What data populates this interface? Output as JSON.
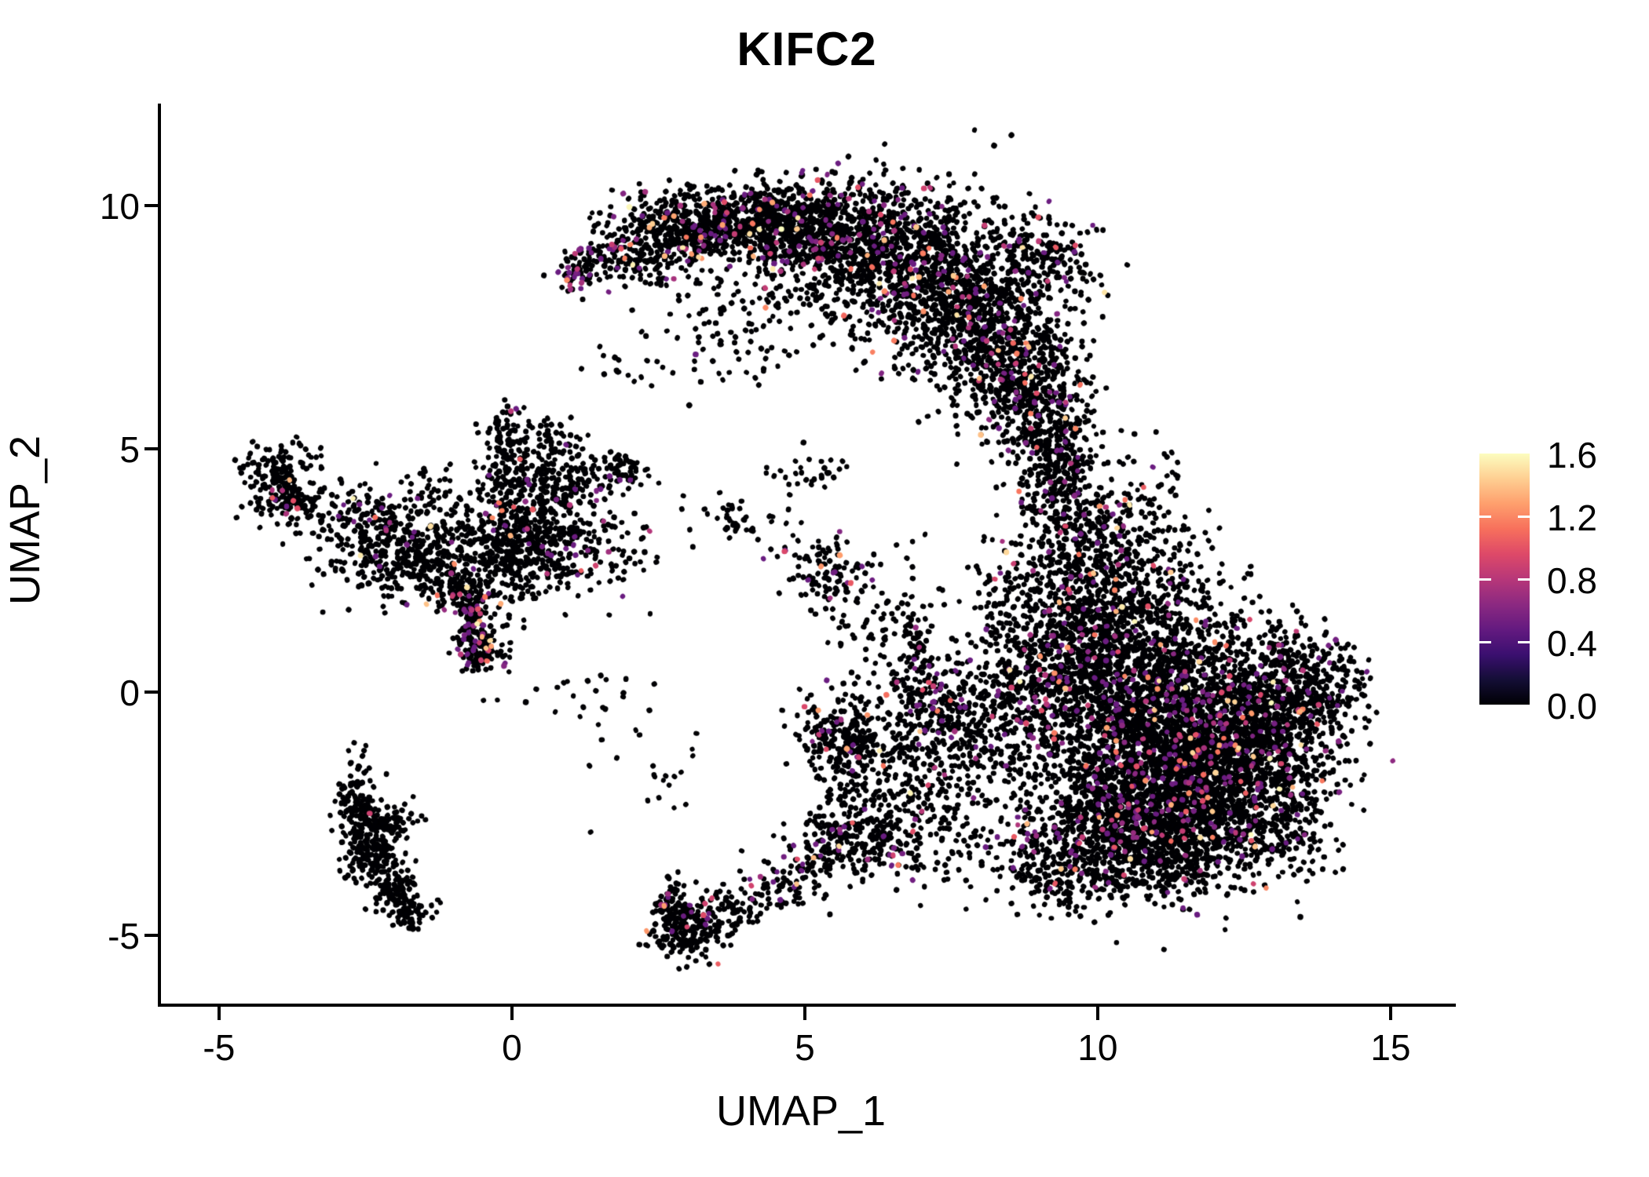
{
  "chart": {
    "title": "KIFC2",
    "xlabel": "UMAP_1",
    "ylabel": "UMAP_2"
  },
  "chart_data": {
    "type": "scatter",
    "title": "KIFC2",
    "xlabel": "UMAP_1",
    "ylabel": "UMAP_2",
    "x_ticks": [
      "-5",
      "0",
      "5",
      "10",
      "15"
    ],
    "x_tick_values": [
      -5,
      0,
      5,
      10,
      15
    ],
    "y_ticks": [
      "10",
      "5",
      "0",
      "-5"
    ],
    "y_tick_values": [
      10,
      5,
      0,
      -5
    ],
    "xlim": [
      -5.99,
      16.06
    ],
    "ylim": [
      -6.4,
      12.1
    ],
    "grid": false,
    "legend_position": "right",
    "colorbar": {
      "ticks": [
        "1.6",
        "1.2",
        "0.8",
        "0.4",
        "0.0"
      ],
      "tick_values": [
        1.6,
        1.2,
        0.8,
        0.4,
        0.0
      ],
      "interior_tick_values": [
        1.2,
        0.8,
        0.4
      ],
      "vmin": 0.0,
      "vmax": 1.6,
      "colormap": "magma"
    },
    "magma_anchors": [
      [
        0.0,
        "#000004"
      ],
      [
        0.1,
        "#140e36"
      ],
      [
        0.2,
        "#3b0f70"
      ],
      [
        0.3,
        "#641a80"
      ],
      [
        0.4,
        "#8c2981"
      ],
      [
        0.5,
        "#b73779"
      ],
      [
        0.6,
        "#de4968"
      ],
      [
        0.7,
        "#f7705c"
      ],
      [
        0.8,
        "#fe9f6d"
      ],
      [
        0.9,
        "#fecf92"
      ],
      [
        1.0,
        "#fcfdbf"
      ]
    ],
    "point_style": {
      "radius": 3.3,
      "seed": 42,
      "zero_fraction_default": 0.93
    },
    "clusters": [
      {
        "name": "top-arc",
        "blobs": [
          [
            10,
            1.02,
            8.55,
            0.07,
            0.15,
            0,
            0.8
          ],
          [
            70,
            1.25,
            8.72,
            0.22,
            0.3,
            -35,
            0.15
          ],
          [
            260,
            2.2,
            9.15,
            0.5,
            0.42,
            0,
            0.1
          ],
          [
            360,
            3.2,
            9.6,
            0.55,
            0.38,
            0,
            0.08
          ],
          [
            420,
            4.3,
            9.65,
            0.6,
            0.45,
            0,
            0.09
          ],
          [
            520,
            5.4,
            9.45,
            0.65,
            0.55,
            0,
            0.09
          ],
          [
            560,
            6.4,
            9.0,
            0.7,
            0.72,
            0,
            0.08
          ],
          [
            560,
            7.3,
            8.4,
            0.65,
            0.85,
            0,
            0.08
          ],
          [
            500,
            8.1,
            7.55,
            0.58,
            0.92,
            0,
            0.07
          ],
          [
            400,
            8.7,
            6.6,
            0.5,
            0.85,
            0,
            0.07
          ],
          [
            240,
            9.1,
            5.8,
            0.42,
            0.7,
            0,
            0.07
          ],
          [
            200,
            9.05,
            8.85,
            0.45,
            0.5,
            0,
            0.07
          ],
          [
            90,
            4.3,
            8.35,
            0.9,
            0.5,
            0,
            0.05
          ],
          [
            60,
            3.6,
            7.1,
            0.75,
            0.5,
            0,
            0.05
          ],
          [
            70,
            9.4,
            4.9,
            0.3,
            0.55,
            0,
            0.07
          ],
          [
            15,
            1.8,
            6.6,
            0.5,
            0.3,
            0,
            0
          ]
        ]
      },
      {
        "name": "right-connector-band",
        "blobs": [
          [
            150,
            9.3,
            4.35,
            0.35,
            0.55,
            0,
            0.07
          ],
          [
            200,
            9.7,
            3.4,
            0.45,
            0.6,
            0,
            0.07
          ],
          [
            260,
            10.0,
            2.45,
            0.55,
            0.6,
            0,
            0.07
          ],
          [
            120,
            10.9,
            3.4,
            0.5,
            0.8,
            0,
            0.05
          ],
          [
            80,
            8.6,
            2.1,
            0.35,
            0.5,
            0,
            0.05
          ]
        ]
      },
      {
        "name": "big-right-cluster",
        "blobs": [
          [
            700,
            9.6,
            0.6,
            0.8,
            0.9,
            0,
            0.08
          ],
          [
            900,
            10.8,
            0.2,
            0.9,
            0.9,
            0,
            0.08
          ],
          [
            900,
            11.8,
            -0.6,
            0.9,
            0.9,
            0,
            0.08
          ],
          [
            900,
            10.8,
            -1.6,
            0.9,
            0.85,
            0,
            0.08
          ],
          [
            850,
            11.9,
            -2.2,
            0.85,
            0.8,
            0,
            0.08
          ],
          [
            600,
            10.3,
            -2.8,
            0.8,
            0.7,
            0,
            0.08
          ],
          [
            500,
            12.9,
            -1.2,
            0.6,
            0.85,
            0,
            0.08
          ],
          [
            350,
            13.0,
            0.2,
            0.6,
            0.6,
            0,
            0.08
          ],
          [
            120,
            13.9,
            -0.3,
            0.35,
            0.5,
            0,
            0.06
          ],
          [
            25,
            14.25,
            0.3,
            0.15,
            0.3,
            0,
            0
          ],
          [
            280,
            11.2,
            -3.4,
            0.7,
            0.45,
            0,
            0.07
          ],
          [
            160,
            9.3,
            -3.6,
            0.5,
            0.45,
            0,
            0.06
          ],
          [
            280,
            8.3,
            -0.5,
            0.5,
            1.2,
            0,
            0.07
          ],
          [
            150,
            11.0,
            1.8,
            0.8,
            0.5,
            0,
            0.06
          ],
          [
            90,
            13.2,
            -2.9,
            0.5,
            0.5,
            0,
            0.06
          ]
        ]
      },
      {
        "name": "mid-gap-field",
        "blobs": [
          [
            220,
            5.65,
            -0.85,
            0.38,
            0.45,
            0,
            0.05
          ],
          [
            120,
            6.6,
            -1.3,
            0.6,
            0.6,
            0,
            0.05
          ],
          [
            90,
            7.1,
            0.0,
            0.26,
            0.5,
            25,
            0.3
          ],
          [
            260,
            7.35,
            -1.0,
            0.8,
            1.0,
            0,
            0.06
          ],
          [
            160,
            6.0,
            -2.75,
            0.4,
            0.5,
            0,
            0.08
          ],
          [
            140,
            7.3,
            -3.0,
            0.7,
            0.5,
            0,
            0.06
          ],
          [
            70,
            6.85,
            0.7,
            0.13,
            0.9,
            0,
            0.05
          ],
          [
            60,
            6.2,
            1.4,
            0.5,
            0.5,
            0,
            0.05
          ],
          [
            25,
            1.2,
            -0.1,
            0.9,
            0.3,
            0,
            0
          ],
          [
            20,
            2.5,
            -1.7,
            0.5,
            0.5,
            0,
            0
          ]
        ]
      },
      {
        "name": "bottom-tail",
        "blobs": [
          [
            200,
            3.0,
            -4.85,
            0.34,
            0.3,
            0,
            0.06
          ],
          [
            60,
            2.73,
            -4.35,
            0.11,
            0.32,
            0,
            0.06
          ],
          [
            80,
            3.8,
            -4.45,
            0.5,
            0.22,
            12,
            0.06
          ],
          [
            90,
            4.8,
            -3.9,
            0.5,
            0.28,
            25,
            0.08
          ],
          [
            110,
            5.5,
            -3.15,
            0.38,
            0.45,
            40,
            0.09
          ]
        ]
      },
      {
        "name": "lower-left-hook",
        "blobs": [
          [
            40,
            -2.72,
            -1.85,
            0.12,
            0.35,
            0,
            0
          ],
          [
            130,
            -2.6,
            -2.6,
            0.18,
            0.35,
            0,
            0.03
          ],
          [
            120,
            -2.35,
            -3.3,
            0.2,
            0.35,
            -25,
            0
          ],
          [
            90,
            -2.0,
            -3.95,
            0.18,
            0.3,
            -30,
            0
          ],
          [
            70,
            -1.78,
            -4.45,
            0.22,
            0.17,
            0,
            0
          ],
          [
            70,
            -2.18,
            -2.72,
            0.3,
            0.17,
            30,
            0
          ],
          [
            6,
            -1.7,
            -4.78,
            0.08,
            0.07,
            0,
            0
          ]
        ]
      },
      {
        "name": "far-left-cluster",
        "blobs": [
          [
            150,
            -3.95,
            4.3,
            0.28,
            0.38,
            0,
            0.05
          ],
          [
            70,
            -3.6,
            3.75,
            0.35,
            0.25,
            -30,
            0.06
          ],
          [
            30,
            -3.85,
            4.85,
            0.3,
            0.18,
            0,
            0
          ]
        ]
      },
      {
        "name": "left-mid-cluster",
        "blobs": [
          [
            280,
            -2.3,
            3.2,
            0.5,
            0.55,
            0,
            0.04
          ],
          [
            130,
            -1.7,
            2.6,
            0.4,
            0.4,
            0,
            0.04
          ],
          [
            60,
            -1.15,
            3.15,
            0.4,
            0.3,
            0,
            0.04
          ],
          [
            50,
            -1.35,
            3.95,
            0.35,
            0.3,
            0,
            0.04
          ]
        ]
      },
      {
        "name": "central-branchy-cluster",
        "blobs": [
          [
            350,
            0.3,
            3.6,
            0.55,
            0.6,
            0,
            0.05
          ],
          [
            250,
            0.0,
            2.7,
            0.5,
            0.5,
            0,
            0.05
          ],
          [
            90,
            -0.15,
            5.0,
            0.18,
            0.55,
            0,
            0.04
          ],
          [
            60,
            0.3,
            4.7,
            0.3,
            0.3,
            0,
            0.04
          ],
          [
            120,
            1.2,
            4.35,
            0.45,
            0.25,
            8,
            0.05
          ],
          [
            25,
            1.95,
            4.62,
            0.15,
            0.13,
            0,
            0
          ],
          [
            160,
            -0.68,
            1.55,
            0.15,
            0.5,
            8,
            0.22
          ],
          [
            80,
            -0.5,
            0.85,
            0.2,
            0.2,
            0,
            0.25
          ],
          [
            90,
            -1.0,
            2.2,
            0.33,
            0.45,
            30,
            0.05
          ],
          [
            110,
            1.4,
            2.9,
            0.5,
            0.5,
            0,
            0.05
          ],
          [
            40,
            0.8,
            5.3,
            0.35,
            0.3,
            0,
            0
          ]
        ]
      },
      {
        "name": "small-mid-clusters",
        "blobs": [
          [
            45,
            3.95,
            3.5,
            0.45,
            0.27,
            -15,
            0.04
          ],
          [
            110,
            5.35,
            2.45,
            0.4,
            0.3,
            -38,
            0.13
          ],
          [
            30,
            5.1,
            4.5,
            0.35,
            0.25,
            0,
            0
          ]
        ]
      }
    ]
  }
}
